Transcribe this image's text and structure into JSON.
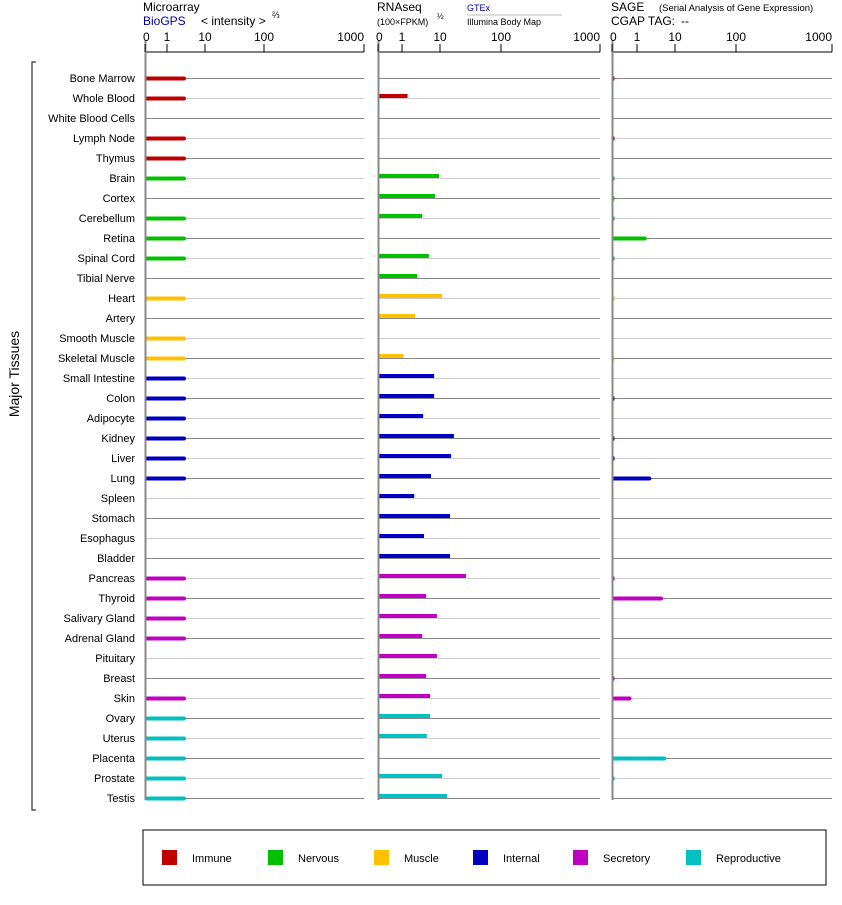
{
  "header": {
    "microarray": {
      "title": "Microarray",
      "source": "BioGPS",
      "unit": "< intensity >",
      "unit_exp": "⅔"
    },
    "rnaseq": {
      "title": "RNAseq",
      "unit": "(100×FPKM)",
      "unit_exp": "½",
      "source1": "GTEx",
      "source2": "Illumina Body Map"
    },
    "sage": {
      "title": "SAGE",
      "subtitle": "(Serial Analysis of Gene Expression)",
      "tag_label": "CGAP TAG:",
      "tag_value": "--"
    }
  },
  "ylabel": "Major Tissues",
  "colors": {
    "Immune": "#c00000",
    "Nervous": "#00c000",
    "Muscle": "#ffc000",
    "Internal": "#0000c0",
    "Secretory": "#c000c0",
    "Reproductive": "#00c0c0"
  },
  "chart_data": {
    "type": "bar",
    "orientation": "horizontal",
    "axis_ticks": [
      "0",
      "1",
      "10",
      "100",
      "1000"
    ],
    "tick_values": [
      0,
      1,
      10,
      100,
      1000
    ],
    "xlim": [
      0,
      1000
    ],
    "legend": [
      "Immune",
      "Nervous",
      "Muscle",
      "Internal",
      "Secretory",
      "Reproductive"
    ],
    "legend_position": "bottom",
    "categories": [
      "Bone Marrow",
      "Whole Blood",
      "White Blood Cells",
      "Lymph Node",
      "Thymus",
      "Brain",
      "Cortex",
      "Cerebellum",
      "Retina",
      "Spinal Cord",
      "Tibial Nerve",
      "Heart",
      "Artery",
      "Smooth Muscle",
      "Skeletal Muscle",
      "Small Intestine",
      "Colon",
      "Adipocyte",
      "Kidney",
      "Liver",
      "Lung",
      "Spleen",
      "Stomach",
      "Esophagus",
      "Bladder",
      "Pancreas",
      "Thyroid",
      "Salivary Gland",
      "Adrenal Gland",
      "Pituitary",
      "Breast",
      "Skin",
      "Ovary",
      "Uterus",
      "Placenta",
      "Prostate",
      "Testis"
    ],
    "groups": [
      "Immune",
      "Immune",
      "Immune",
      "Immune",
      "Immune",
      "Nervous",
      "Nervous",
      "Nervous",
      "Nervous",
      "Nervous",
      "Nervous",
      "Muscle",
      "Muscle",
      "Muscle",
      "Muscle",
      "Internal",
      "Internal",
      "Internal",
      "Internal",
      "Internal",
      "Internal",
      "Internal",
      "Internal",
      "Internal",
      "Internal",
      "Secretory",
      "Secretory",
      "Secretory",
      "Secretory",
      "Secretory",
      "Secretory",
      "Secretory",
      "Reproductive",
      "Reproductive",
      "Reproductive",
      "Reproductive",
      "Reproductive"
    ],
    "series": [
      {
        "name": "Microarray",
        "values": [
          2.8,
          2.8,
          null,
          2.8,
          2.8,
          2.8,
          null,
          2.8,
          2.8,
          2.8,
          null,
          2.8,
          null,
          2.8,
          2.8,
          2.8,
          2.8,
          2.8,
          2.8,
          2.8,
          2.8,
          null,
          null,
          null,
          null,
          2.8,
          2.8,
          2.8,
          2.8,
          null,
          null,
          2.8,
          2.8,
          2.8,
          2.8,
          2.8,
          2.8
        ]
      },
      {
        "name": "RNAseq",
        "values": [
          null,
          1.4,
          null,
          null,
          null,
          9.4,
          7.4,
          3.4,
          null,
          5.1,
          2.5,
          10.8,
          2.2,
          null,
          1.1,
          7.0,
          7.0,
          3.6,
          16.9,
          15.2,
          5.8,
          2.1,
          14.6,
          3.8,
          14.6,
          26.7,
          4.3,
          8.3,
          3.4,
          8.3,
          4.3,
          5.5,
          5.5,
          4.5,
          null,
          10.8,
          13.0
        ]
      },
      {
        "name": "SAGE",
        "values": [
          0.1,
          null,
          null,
          0.1,
          null,
          0.1,
          0.1,
          0.1,
          1.6,
          0.1,
          null,
          0.1,
          null,
          null,
          0.1,
          null,
          0.1,
          null,
          0.1,
          0.1,
          2.1,
          null,
          null,
          null,
          null,
          0.1,
          4.3,
          null,
          null,
          null,
          0.1,
          0.7,
          null,
          null,
          5.2,
          0.1,
          null
        ]
      }
    ]
  }
}
